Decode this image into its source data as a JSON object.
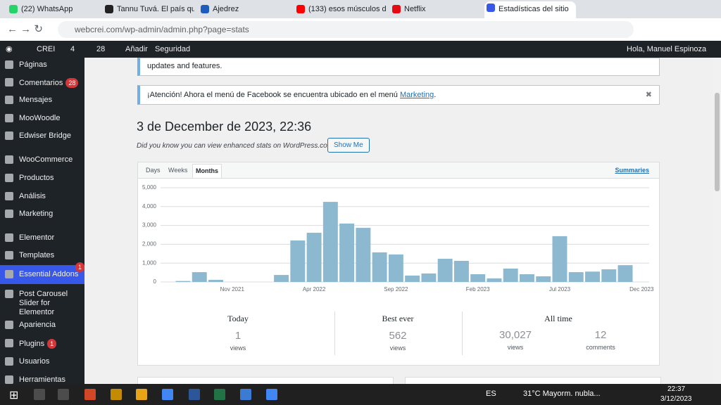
{
  "browser": {
    "tabs": [
      "(22) WhatsApp",
      "Tannu Tuvá. El país qu",
      "Ajedrez",
      "(133) esos músculos d",
      "Netflix",
      "Estadísticas del sitio"
    ],
    "url": "webcrei.com/wp-admin/admin.php?page=stats"
  },
  "admin_bar": {
    "site": "CREI",
    "updates": "4",
    "comments": "28",
    "new": "Añadir",
    "security": "Seguridad",
    "greeting": "Hola, Manuel Espinoza"
  },
  "menu": [
    {
      "label": "Páginas"
    },
    {
      "label": "Comentarios",
      "badge": "28"
    },
    {
      "label": "Mensajes"
    },
    {
      "label": "MooWoodle"
    },
    {
      "label": "Edwiser Bridge"
    },
    {
      "label": "WooCommerce"
    },
    {
      "label": "Productos"
    },
    {
      "label": "Análisis"
    },
    {
      "label": "Marketing"
    },
    {
      "label": "Elementor"
    },
    {
      "label": "Templates"
    },
    {
      "label": "Essential Addons",
      "badge": "1"
    },
    {
      "label": "Post Carousel Slider for Elementor"
    },
    {
      "label": "Apariencia"
    },
    {
      "label": "Plugins",
      "badge": "1"
    },
    {
      "label": "Usuarios"
    },
    {
      "label": "Herramientas"
    }
  ],
  "notices": {
    "top": "updates and features.",
    "facebook_text": "¡Atención! Ahora el menú de Facebook se encuentra ubicado en el menú",
    "facebook_link": "Marketing",
    "facebook_end": "."
  },
  "heading": "3 de December de 2023, 22:36",
  "promo": "Did you know you can view enhanced stats on WordPress.com?",
  "promo_button": "Show Me",
  "period_tabs": [
    "Days",
    "Weeks",
    "Months"
  ],
  "summaries_link": "Summaries",
  "chart_data": {
    "type": "bar",
    "color": "#8cb9cf",
    "grid": true,
    "categories": [
      null,
      null,
      "Nov 2021",
      null,
      null,
      null,
      null,
      "Apr 2022",
      null,
      null,
      null,
      null,
      "Sep 2022",
      null,
      null,
      null,
      null,
      "Feb 2023",
      null,
      null,
      null,
      null,
      "Jul 2023",
      null,
      null,
      null,
      null,
      "Dec 2023"
    ],
    "values": [
      50,
      520,
      110,
      0,
      0,
      0,
      370,
      2200,
      2610,
      4250,
      3100,
      2870,
      1570,
      1460,
      340,
      450,
      1230,
      1120,
      410,
      190,
      710,
      410,
      300,
      2430,
      520,
      550,
      670,
      890
    ],
    "ylim": [
      0,
      5000
    ],
    "yticks": [
      0,
      {
        "value": 1000,
        "label": "1,000"
      },
      {
        "value": 2000,
        "label": "2,000"
      },
      {
        "value": 3000,
        "label": "3,000"
      },
      {
        "value": 4000,
        "label": "4,000"
      },
      {
        "value": 5000,
        "label": "5,000"
      }
    ]
  },
  "summary": {
    "today": {
      "label": "Today",
      "value": "1",
      "unit": "views"
    },
    "best": {
      "label": "Best ever",
      "value": "562",
      "unit": "views"
    },
    "all_time": {
      "label": "All time",
      "views": "30,027",
      "views_unit": "views",
      "comments": "12",
      "comments_unit": "comments"
    }
  },
  "taskbar": {
    "lang": "ES",
    "weather": "31°C Mayorm. nubla...",
    "time": "22:37",
    "date": "3/12/2023"
  }
}
